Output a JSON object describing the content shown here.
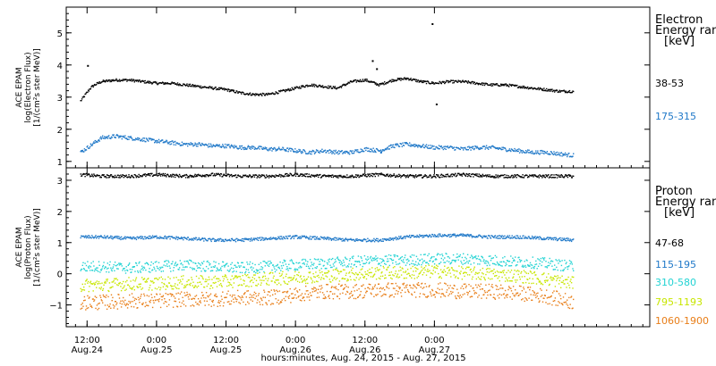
{
  "chart_data": [
    {
      "type": "scatter",
      "panel": "electron",
      "ylabel_lines": [
        "ACE EPAM",
        "log(Electron Flux)",
        "[1/(cm²s ster MeV)]"
      ],
      "ylim": [
        0.8,
        5.8
      ],
      "yticks": [
        1,
        2,
        3,
        4,
        5
      ],
      "legend_title_lines": [
        "Electron",
        "Energy ranges",
        "[keV]"
      ],
      "series": [
        {
          "name": "38-53",
          "color": "#000000",
          "x": [
            -0.55,
            -0.48,
            -0.45,
            -0.4,
            -0.3,
            -0.2,
            -0.1,
            0.0,
            0.1,
            0.2,
            0.3,
            0.4,
            0.5,
            0.6,
            0.7,
            0.8,
            0.9,
            1.0,
            1.1,
            1.2,
            1.3,
            1.4,
            1.5,
            1.6,
            1.7,
            1.8,
            1.9,
            2.0,
            2.1,
            2.2,
            2.3,
            2.4,
            2.5,
            2.6,
            2.7,
            2.8,
            2.9,
            3.0
          ],
          "values": [
            2.9,
            3.3,
            3.4,
            3.5,
            3.55,
            3.55,
            3.5,
            3.45,
            3.45,
            3.4,
            3.35,
            3.3,
            3.25,
            3.15,
            3.1,
            3.1,
            3.2,
            3.3,
            3.4,
            3.35,
            3.3,
            3.5,
            3.55,
            3.4,
            3.55,
            3.6,
            3.5,
            3.45,
            3.5,
            3.5,
            3.45,
            3.4,
            3.4,
            3.35,
            3.3,
            3.25,
            3.2,
            3.2
          ],
          "outliers": [
            [
              -0.5,
              4.0
            ],
            [
              1.55,
              4.15
            ],
            [
              1.58,
              3.9
            ],
            [
              1.98,
              5.3
            ],
            [
              2.01,
              2.8
            ]
          ]
        },
        {
          "name": "175-315",
          "color": "#1f78c8",
          "x": [
            -0.55,
            -0.45,
            -0.4,
            -0.3,
            -0.2,
            -0.1,
            0.0,
            0.1,
            0.2,
            0.3,
            0.4,
            0.5,
            0.6,
            0.7,
            0.8,
            0.9,
            1.0,
            1.1,
            1.2,
            1.3,
            1.4,
            1.5,
            1.6,
            1.7,
            1.8,
            1.9,
            2.0,
            2.1,
            2.2,
            2.3,
            2.4,
            2.5,
            2.6,
            2.7,
            2.8,
            2.9,
            3.0
          ],
          "values": [
            1.3,
            1.6,
            1.75,
            1.8,
            1.75,
            1.7,
            1.65,
            1.6,
            1.55,
            1.55,
            1.5,
            1.5,
            1.45,
            1.45,
            1.4,
            1.4,
            1.35,
            1.3,
            1.35,
            1.3,
            1.3,
            1.4,
            1.35,
            1.5,
            1.55,
            1.5,
            1.45,
            1.45,
            1.4,
            1.45,
            1.45,
            1.4,
            1.35,
            1.3,
            1.3,
            1.25,
            1.2
          ],
          "outliers": [
            [
              1.61,
              1.3
            ]
          ]
        }
      ]
    },
    {
      "type": "scatter",
      "panel": "proton",
      "ylabel_lines": [
        "ACE EPAM",
        "log(Proton Flux)",
        "[1/(cm²s ster MeV)]"
      ],
      "ylim": [
        -1.7,
        3.4
      ],
      "yticks": [
        -1,
        0,
        1,
        2,
        3
      ],
      "legend_title_lines": [
        "Proton",
        "Energy ranges",
        "[keV]"
      ],
      "series": [
        {
          "name": "47-68",
          "color": "#000000",
          "x": [
            -0.55,
            -0.4,
            -0.2,
            0.0,
            0.2,
            0.4,
            0.6,
            0.8,
            1.0,
            1.2,
            1.4,
            1.6,
            1.8,
            2.0,
            2.2,
            2.4,
            2.6,
            2.8,
            3.0
          ],
          "values": [
            3.2,
            3.15,
            3.15,
            3.2,
            3.15,
            3.2,
            3.15,
            3.15,
            3.2,
            3.15,
            3.15,
            3.2,
            3.15,
            3.15,
            3.2,
            3.15,
            3.15,
            3.15,
            3.15
          ]
        },
        {
          "name": "115-195",
          "color": "#1f78c8",
          "x": [
            -0.55,
            -0.4,
            -0.2,
            0.0,
            0.2,
            0.4,
            0.6,
            0.8,
            1.0,
            1.2,
            1.4,
            1.6,
            1.8,
            2.0,
            2.2,
            2.4,
            2.6,
            2.8,
            3.0
          ],
          "values": [
            1.2,
            1.2,
            1.15,
            1.2,
            1.15,
            1.1,
            1.1,
            1.15,
            1.2,
            1.15,
            1.1,
            1.1,
            1.2,
            1.25,
            1.25,
            1.2,
            1.2,
            1.15,
            1.1
          ]
        },
        {
          "name": "310-580",
          "color": "#22d3d3",
          "x": [
            -0.55,
            -0.4,
            -0.2,
            0.0,
            0.2,
            0.4,
            0.6,
            0.8,
            1.0,
            1.2,
            1.4,
            1.6,
            1.8,
            2.0,
            2.2,
            2.4,
            2.6,
            2.8,
            3.0
          ],
          "values": [
            0.25,
            0.25,
            0.2,
            0.25,
            0.3,
            0.25,
            0.2,
            0.25,
            0.3,
            0.35,
            0.4,
            0.45,
            0.45,
            0.5,
            0.5,
            0.45,
            0.4,
            0.35,
            0.25
          ]
        },
        {
          "name": "795-1193",
          "color": "#c8e600",
          "x": [
            -0.55,
            -0.4,
            -0.2,
            0.0,
            0.2,
            0.4,
            0.6,
            0.8,
            1.0,
            1.2,
            1.4,
            1.6,
            1.8,
            2.0,
            2.2,
            2.4,
            2.6,
            2.8,
            3.0
          ],
          "values": [
            -0.35,
            -0.35,
            -0.3,
            -0.3,
            -0.25,
            -0.25,
            -0.2,
            -0.15,
            -0.1,
            -0.05,
            0.0,
            0.05,
            0.05,
            0.1,
            0.05,
            0.0,
            -0.05,
            -0.15,
            -0.3
          ]
        },
        {
          "name": "1060-1900",
          "color": "#e87e18",
          "x": [
            -0.55,
            -0.4,
            -0.2,
            0.0,
            0.2,
            0.4,
            0.6,
            0.8,
            1.0,
            1.2,
            1.4,
            1.6,
            1.8,
            2.0,
            2.2,
            2.4,
            2.6,
            2.8,
            3.0
          ],
          "values": [
            -0.9,
            -0.9,
            -0.85,
            -0.85,
            -0.8,
            -0.8,
            -0.75,
            -0.75,
            -0.65,
            -0.55,
            -0.55,
            -0.5,
            -0.5,
            -0.5,
            -0.55,
            -0.55,
            -0.6,
            -0.7,
            -0.9
          ]
        }
      ]
    }
  ],
  "xaxis": {
    "xlim": [
      -0.65,
      3.55
    ],
    "major_ticks": [
      {
        "x": -0.5,
        "line1": "12:00",
        "line2": "Aug.24"
      },
      {
        "x": 0.0,
        "line1": "0:00",
        "line2": "Aug.25"
      },
      {
        "x": 0.5,
        "line1": "12:00",
        "line2": "Aug.25"
      },
      {
        "x": 1.0,
        "line1": "0:00",
        "line2": "Aug.26"
      },
      {
        "x": 1.5,
        "line1": "12:00",
        "line2": "Aug.26"
      },
      {
        "x": 2.0,
        "line1": "0:00",
        "line2": "Aug.27"
      }
    ],
    "xlabel": "hours:minutes, Aug. 24, 2015 - Aug. 27, 2015"
  }
}
